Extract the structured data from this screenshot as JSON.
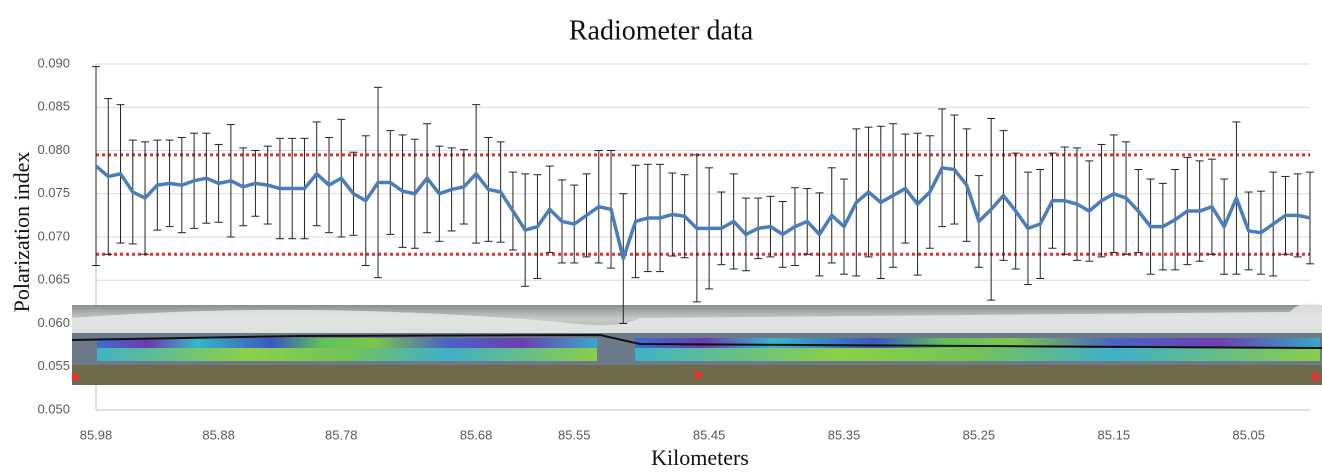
{
  "chart_data": {
    "type": "line",
    "title": "Radiometer data",
    "x_label": "Kilometers",
    "y_label": "Polarization index",
    "categories": [
      "85.98",
      null,
      null,
      null,
      null,
      null,
      null,
      null,
      null,
      null,
      "85.88",
      null,
      null,
      null,
      null,
      null,
      null,
      null,
      null,
      null,
      "85.78",
      null,
      null,
      null,
      null,
      null,
      null,
      null,
      null,
      null,
      null,
      "85.68",
      null,
      null,
      null,
      null,
      null,
      null,
      null,
      "85.55",
      null,
      null,
      null,
      null,
      null,
      null,
      null,
      null,
      null,
      null,
      "85.45",
      null,
      null,
      null,
      null,
      null,
      null,
      null,
      null,
      null,
      null,
      "85.35",
      null,
      null,
      null,
      null,
      null,
      null,
      null,
      null,
      null,
      null,
      "85.25",
      null,
      null,
      null,
      null,
      null,
      null,
      null,
      null,
      null,
      null,
      "85.15",
      null,
      null,
      null,
      null,
      null,
      null,
      null,
      null,
      null,
      null,
      "85.05",
      null,
      null,
      null,
      null,
      null
    ],
    "values": [
      0.0782,
      0.077,
      0.0773,
      0.0752,
      0.0745,
      0.076,
      0.0762,
      0.076,
      0.0765,
      0.0768,
      0.0762,
      0.0765,
      0.0758,
      0.0762,
      0.076,
      0.0756,
      0.0756,
      0.0756,
      0.0773,
      0.076,
      0.0768,
      0.075,
      0.0742,
      0.0763,
      0.0763,
      0.0753,
      0.075,
      0.0768,
      0.075,
      0.0755,
      0.0758,
      0.0773,
      0.0755,
      0.0752,
      0.073,
      0.0708,
      0.0712,
      0.0732,
      0.0718,
      0.0715,
      0.0725,
      0.0735,
      0.0732,
      0.0675,
      0.0718,
      0.0722,
      0.0722,
      0.0726,
      0.0724,
      0.071,
      0.071,
      0.071,
      0.0718,
      0.0703,
      0.071,
      0.0712,
      0.0703,
      0.0712,
      0.0718,
      0.0703,
      0.0725,
      0.0712,
      0.074,
      0.0752,
      0.074,
      0.0748,
      0.0756,
      0.0738,
      0.0752,
      0.078,
      0.0778,
      0.076,
      0.0718,
      0.0732,
      0.0748,
      0.073,
      0.071,
      0.0715,
      0.0742,
      0.0742,
      0.0738,
      0.073,
      0.0742,
      0.075,
      0.0745,
      0.073,
      0.0712,
      0.0712,
      0.072,
      0.073,
      0.073,
      0.0735,
      0.0712,
      0.0745,
      0.0707,
      0.0705,
      0.0715,
      0.0725,
      0.0725,
      0.0722
    ],
    "errors": [
      0.0115,
      0.009,
      0.008,
      0.006,
      0.0065,
      0.0052,
      0.005,
      0.0055,
      0.0055,
      0.0052,
      0.0045,
      0.0065,
      0.0045,
      0.0038,
      0.0045,
      0.0058,
      0.0058,
      0.0058,
      0.006,
      0.0055,
      0.0068,
      0.0048,
      0.0075,
      0.011,
      0.006,
      0.0065,
      0.0063,
      0.0063,
      0.0055,
      0.0048,
      0.0043,
      0.008,
      0.006,
      0.0058,
      0.0045,
      0.0065,
      0.006,
      0.005,
      0.0048,
      0.0045,
      0.0048,
      0.0065,
      0.0068,
      0.0075,
      0.0065,
      0.0062,
      0.0062,
      0.0048,
      0.0048,
      0.0085,
      0.007,
      0.0042,
      0.0055,
      0.0042,
      0.0035,
      0.0035,
      0.0038,
      0.0045,
      0.0038,
      0.0048,
      0.0055,
      0.0055,
      0.0085,
      0.0075,
      0.0088,
      0.0083,
      0.0063,
      0.0082,
      0.0065,
      0.0068,
      0.0063,
      0.0065,
      0.0053,
      0.0105,
      0.0075,
      0.0067,
      0.0065,
      0.0063,
      0.0055,
      0.0062,
      0.0065,
      0.0058,
      0.0065,
      0.0068,
      0.0065,
      0.0048,
      0.0055,
      0.005,
      0.0058,
      0.0062,
      0.0058,
      0.0055,
      0.0055,
      0.0088,
      0.0045,
      0.0048,
      0.006,
      0.0045,
      0.0048,
      0.0053
    ],
    "color": "#4a7ebb",
    "error_color": "#222222",
    "reference_lines": [
      {
        "value": 0.0795,
        "color": "#e03030"
      },
      {
        "value": 0.068,
        "color": "#e03030"
      }
    ],
    "ylim": [
      0.05,
      0.09
    ],
    "yticks": [
      {
        "value": 0.05,
        "label": "0.050"
      },
      0.055,
      {
        "value": 0.06,
        "label": "0.060"
      },
      0.065,
      {
        "value": 0.07,
        "label": "0.070"
      },
      0.075,
      {
        "value": 0.08,
        "label": "0.080"
      },
      0.085,
      {
        "value": 0.09,
        "label": "0.090"
      }
    ],
    "grid": true
  }
}
